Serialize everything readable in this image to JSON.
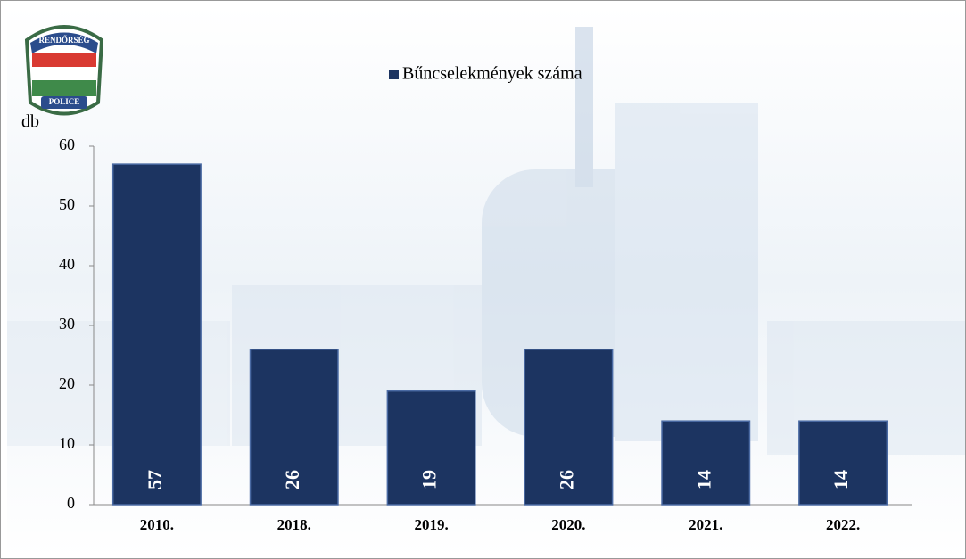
{
  "logo": {
    "top": "RENDŐRSÉG",
    "bottom": "POLICE"
  },
  "chart_data": {
    "type": "bar",
    "y_label": "db",
    "legend": "Bűncselekmények száma",
    "categories": [
      "2010.",
      "2018.",
      "2019.",
      "2020.",
      "2021.",
      "2022."
    ],
    "values": [
      57,
      26,
      19,
      26,
      14,
      14
    ],
    "color": "#1c3461",
    "ylim": [
      0,
      60
    ],
    "yticks": [
      0,
      10,
      20,
      30,
      40,
      50,
      60
    ]
  }
}
